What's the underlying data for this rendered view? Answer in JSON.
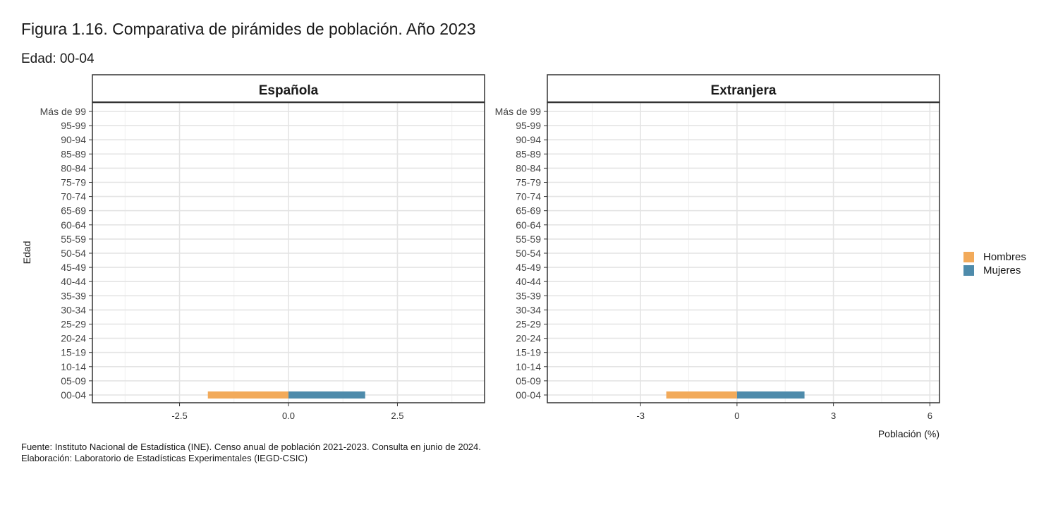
{
  "title": "Figura 1.16. Comparativa de pirámides de población. Año 2023",
  "subtitle": "Edad: 00-04",
  "caption": [
    "Fuente: Instituto Nacional de Estadística (INE). Censo anual de población 2021-2023. Consulta en junio de 2024.",
    "Elaboración: Laboratorio de Estadísticas Experimentales (IEGD-CSIC)"
  ],
  "colors": {
    "hombres": "#F2AA5A",
    "mujeres": "#4E8BAB"
  },
  "legend": [
    {
      "label": "Hombres",
      "color": "#F2AA5A"
    },
    {
      "label": "Mujeres",
      "color": "#4E8BAB"
    }
  ],
  "chart_data": {
    "type": "bar",
    "orientation": "horizontal",
    "ylabel": "Edad",
    "xlabel": "Población (%)",
    "grid": true,
    "legend_position": "right",
    "categories": [
      "00-04",
      "05-09",
      "10-14",
      "15-19",
      "20-24",
      "25-29",
      "30-34",
      "35-39",
      "40-44",
      "45-49",
      "50-54",
      "55-59",
      "60-64",
      "65-69",
      "70-74",
      "75-79",
      "80-84",
      "85-89",
      "90-94",
      "95-99",
      "Más de 99"
    ],
    "panels": [
      {
        "name": "Española",
        "xlim": [
          -4.5,
          4.5
        ],
        "xticks": [
          -2.5,
          0.0,
          2.5
        ],
        "xtick_labels": [
          "-2.5",
          "0.0",
          "2.5"
        ],
        "series": [
          {
            "name": "Hombres",
            "values": [
              -1.85,
              null,
              null,
              null,
              null,
              null,
              null,
              null,
              null,
              null,
              null,
              null,
              null,
              null,
              null,
              null,
              null,
              null,
              null,
              null,
              null
            ]
          },
          {
            "name": "Mujeres",
            "values": [
              1.76,
              null,
              null,
              null,
              null,
              null,
              null,
              null,
              null,
              null,
              null,
              null,
              null,
              null,
              null,
              null,
              null,
              null,
              null,
              null,
              null
            ]
          }
        ]
      },
      {
        "name": "Extranjera",
        "xlim": [
          -5.9,
          6.3
        ],
        "xticks": [
          -3,
          0,
          3,
          6
        ],
        "xtick_labels": [
          "-3",
          "0",
          "3",
          "6"
        ],
        "series": [
          {
            "name": "Hombres",
            "values": [
              -2.2,
              null,
              null,
              null,
              null,
              null,
              null,
              null,
              null,
              null,
              null,
              null,
              null,
              null,
              null,
              null,
              null,
              null,
              null,
              null,
              null
            ]
          },
          {
            "name": "Mujeres",
            "values": [
              2.1,
              null,
              null,
              null,
              null,
              null,
              null,
              null,
              null,
              null,
              null,
              null,
              null,
              null,
              null,
              null,
              null,
              null,
              null,
              null,
              null
            ]
          }
        ]
      }
    ]
  }
}
